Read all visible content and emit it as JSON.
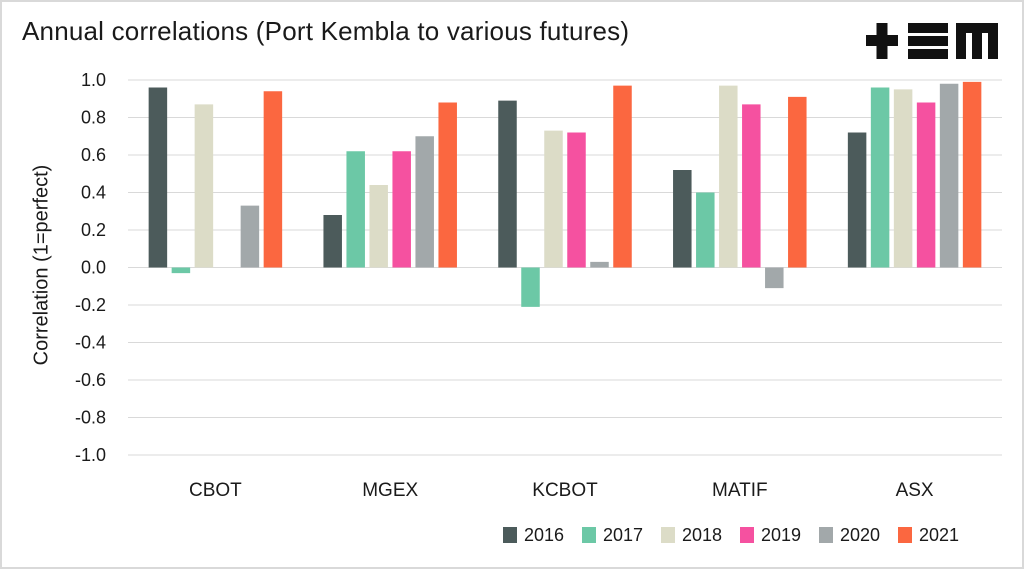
{
  "title": "Annual correlations (Port Kembla to various futures)",
  "logo": {
    "text": "+EM",
    "icon": "tem-logo"
  },
  "chart_data": {
    "type": "bar",
    "title": "Annual correlations (Port Kembla to various futures)",
    "xlabel": "",
    "ylabel": "Correlation (1=perfect)",
    "ylim": [
      -1.0,
      1.0
    ],
    "yticks": [
      "1.0",
      "0.8",
      "0.6",
      "0.4",
      "0.2",
      "0.0",
      "-0.2",
      "-0.4",
      "-0.6",
      "-0.8",
      "-1.0"
    ],
    "grid": true,
    "legend_position": "bottom-right",
    "categories": [
      "CBOT",
      "MGEX",
      "KCBOT",
      "MATIF",
      "ASX"
    ],
    "series": [
      {
        "name": "2016",
        "color": "#4c5b5b",
        "values": [
          0.96,
          0.28,
          0.89,
          0.52,
          0.72
        ]
      },
      {
        "name": "2017",
        "color": "#6cc8a6",
        "values": [
          -0.03,
          0.62,
          -0.21,
          0.4,
          0.96
        ]
      },
      {
        "name": "2018",
        "color": "#dcdcc7",
        "values": [
          0.87,
          0.44,
          0.73,
          0.97,
          0.95
        ]
      },
      {
        "name": "2019",
        "color": "#f551a0",
        "values": [
          null,
          0.62,
          0.72,
          0.87,
          0.88
        ]
      },
      {
        "name": "2020",
        "color": "#a2a8aa",
        "values": [
          0.33,
          0.7,
          0.03,
          -0.11,
          0.98
        ]
      },
      {
        "name": "2021",
        "color": "#fb6740",
        "values": [
          0.94,
          0.88,
          0.97,
          0.91,
          0.99
        ]
      }
    ]
  }
}
